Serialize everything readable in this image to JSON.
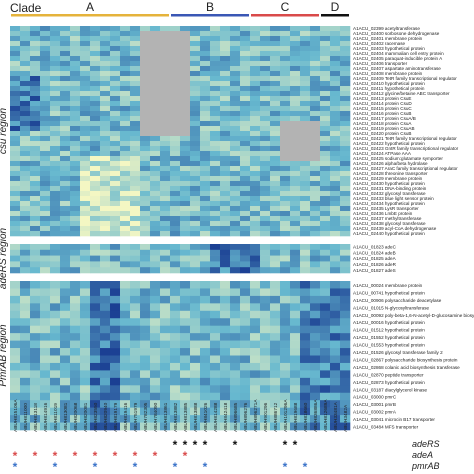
{
  "chart_data": {
    "type": "heatmap",
    "clade_title": "Clade",
    "clades": [
      {
        "label": "A",
        "color": "#e5b33b",
        "start": 0,
        "end": 16
      },
      {
        "label": "B",
        "color": "#3a57b5",
        "start": 16,
        "end": 24
      },
      {
        "label": "C",
        "color": "#d94a4a",
        "start": 24,
        "end": 31
      },
      {
        "label": "D",
        "color": "#111111",
        "start": 31,
        "end": 34
      }
    ],
    "strains": [
      "ABUH815106A",
      "ABUH811000",
      "ABUH813118",
      "ABUH814916",
      "ABUH811019",
      "ABUH813081",
      "ABUH820068",
      "ABUH820081",
      "ABUH823550",
      "ABUH820940",
      "ABUH819179",
      "ABUH819416",
      "ABUH751979",
      "ABUH782305",
      "ABUH784090",
      "ABUH813861",
      "ABUH813882",
      "ABUH813885",
      "ABUH813888",
      "ABUH841026",
      "ABUH814288",
      "ABUH842418",
      "ABUH896685",
      "ABUH896276",
      "ABUH896271A",
      "ABUH901296",
      "ABUH886712",
      "ABUH101296A",
      "ABUH819688",
      "ABUH818660",
      "ABUH836886A",
      "ABUH812689A",
      "ABUH33481A",
      "ABUH3482A"
    ],
    "regions": [
      {
        "name": "csu region",
        "genes": [
          "A1ACU_02399 acetyltransferase",
          "A1ACU_02400 sorbosone dehydrogenase",
          "A1ACU_02401 membrane protein",
          "A1ACU_02402 racemase",
          "A1ACU_02403 hypothetical protein",
          "A1ACU_02404 mammalian cell entry protein",
          "A1ACU_02405 paraquat-inducible protein A",
          "A1ACU_02406 transporter",
          "A1ACU_02407 aspartate aminotransferase",
          "A1ACU_02408 membrane protein",
          "A1ACU_02409 TetR family transcriptional regulator",
          "A1ACU_02410 hypothetical protein",
          "A1ACU_02411 hypothetical protein",
          "A1ACU_02412 glycine/betaine ABC transporter",
          "A1ACU_02413 protein CsuE",
          "A1ACU_02414 protein CsuD",
          "A1ACU_02415 protein CsuC",
          "A1ACU_02416 protein CsuB",
          "A1ACU_02417 protein CsuA/B",
          "A1ACU_02418 protein CsuA",
          "A1ACU_02419 protein CsuAB",
          "A1ACU_02420 protein CsuB",
          "A1ACU_02421 TetR family transcriptional regulator",
          "A1ACU_02422 hypothetical protein",
          "A1ACU_02423 GntR family transcriptional regulator",
          "A1ACU_02424 ATPase AAA",
          "A1ACU_02425 sodium:glutamate symporter",
          "A1ACU_02426 alpha/beta hydrolase",
          "A1ACU_02427 AraC family transcriptional regulator",
          "A1ACU_02428 threonine transporter",
          "A1ACU_02429 membrane protein",
          "A1ACU_02430 hypothetical protein",
          "A1ACU_02431 DNA-binding protein",
          "A1ACU_02432 glycosyl transferase",
          "A1ACU_02433 blue light sensor protein",
          "A1ACU_02434 hypothetical protein",
          "A1ACU_02435 LysR transporter",
          "A1ACU_02436 LmbE protein",
          "A1ACU_02437 methyltransferase",
          "A1ACU_02438 glycosyl transferase",
          "A1ACU_02439 acyl-CoA dehydrogenase",
          "A1ACU_02440 hypothetical protein"
        ]
      },
      {
        "name": "adeRS region",
        "genes": [
          "A1ACU_01823 adeC",
          "A1ACU_01824 adeB",
          "A1ACU_01825 adeA",
          "A1ACU_01826 adeR",
          "A1ACU_01827 adeS"
        ]
      },
      {
        "name": "PmrAB region",
        "genes": [
          "A1ACU_00024 membrane protein",
          "A1ACU_00741 hypothetical protein",
          "A1ACU_00906 polysaccharide deacetylase",
          "A1ACU_01015 N-glycosyltransferase",
          "A1ACU_00092 poly-beta-1,6-N-acetyl-D-glucosamine biosynthesis protein",
          "A1ACU_00016 hypothetical protein",
          "A1ACU_01512 hypothetical protein",
          "A1ACU_01552 hypothetical protein",
          "A1ACU_01553 hypothetical protein",
          "A1ACU_01526 glycosyl transferase family 2",
          "A1ACU_02867 polysaccharide biosynthesis protein",
          "A1ACU_02868 colanic acid biosynthesis transferase",
          "A1ACU_02870 peptide transporter",
          "A1ACU_02873 hypothetical protein",
          "A1ACU_03187 diacylglycerol kinase",
          "A1ACU_03000 pmrC",
          "A1ACU_03001 pmrB",
          "A1ACU_03002 pmrA",
          "A1ACU_03041 microcin B17 transporter",
          "A1ACU_03484 MFS transporter"
        ]
      }
    ],
    "missing_blocks": [
      {
        "region": 0,
        "col_start": 13,
        "col_end": 18,
        "row_start": 1,
        "row_end": 22
      },
      {
        "region": 0,
        "col_start": 27,
        "col_end": 31,
        "row_start": 19,
        "row_end": 27
      }
    ],
    "mutation_rows": [
      {
        "label": "adeRS",
        "color": "#111111",
        "columns": [
          16,
          17,
          18,
          19,
          22,
          27,
          28
        ]
      },
      {
        "label": "adeA",
        "color": "#d94a4a",
        "columns": [
          0,
          2,
          4,
          6,
          8,
          10,
          12,
          14,
          17
        ]
      },
      {
        "label": "pmrAB",
        "color": "#3a73c9",
        "columns": [
          0,
          4,
          8,
          12,
          16,
          19,
          27,
          29
        ]
      }
    ],
    "colors": {
      "low": "#f4f7c3",
      "mid": "#67b8cf",
      "high": "#1b3f93",
      "missing": "#b3b3b3"
    }
  }
}
